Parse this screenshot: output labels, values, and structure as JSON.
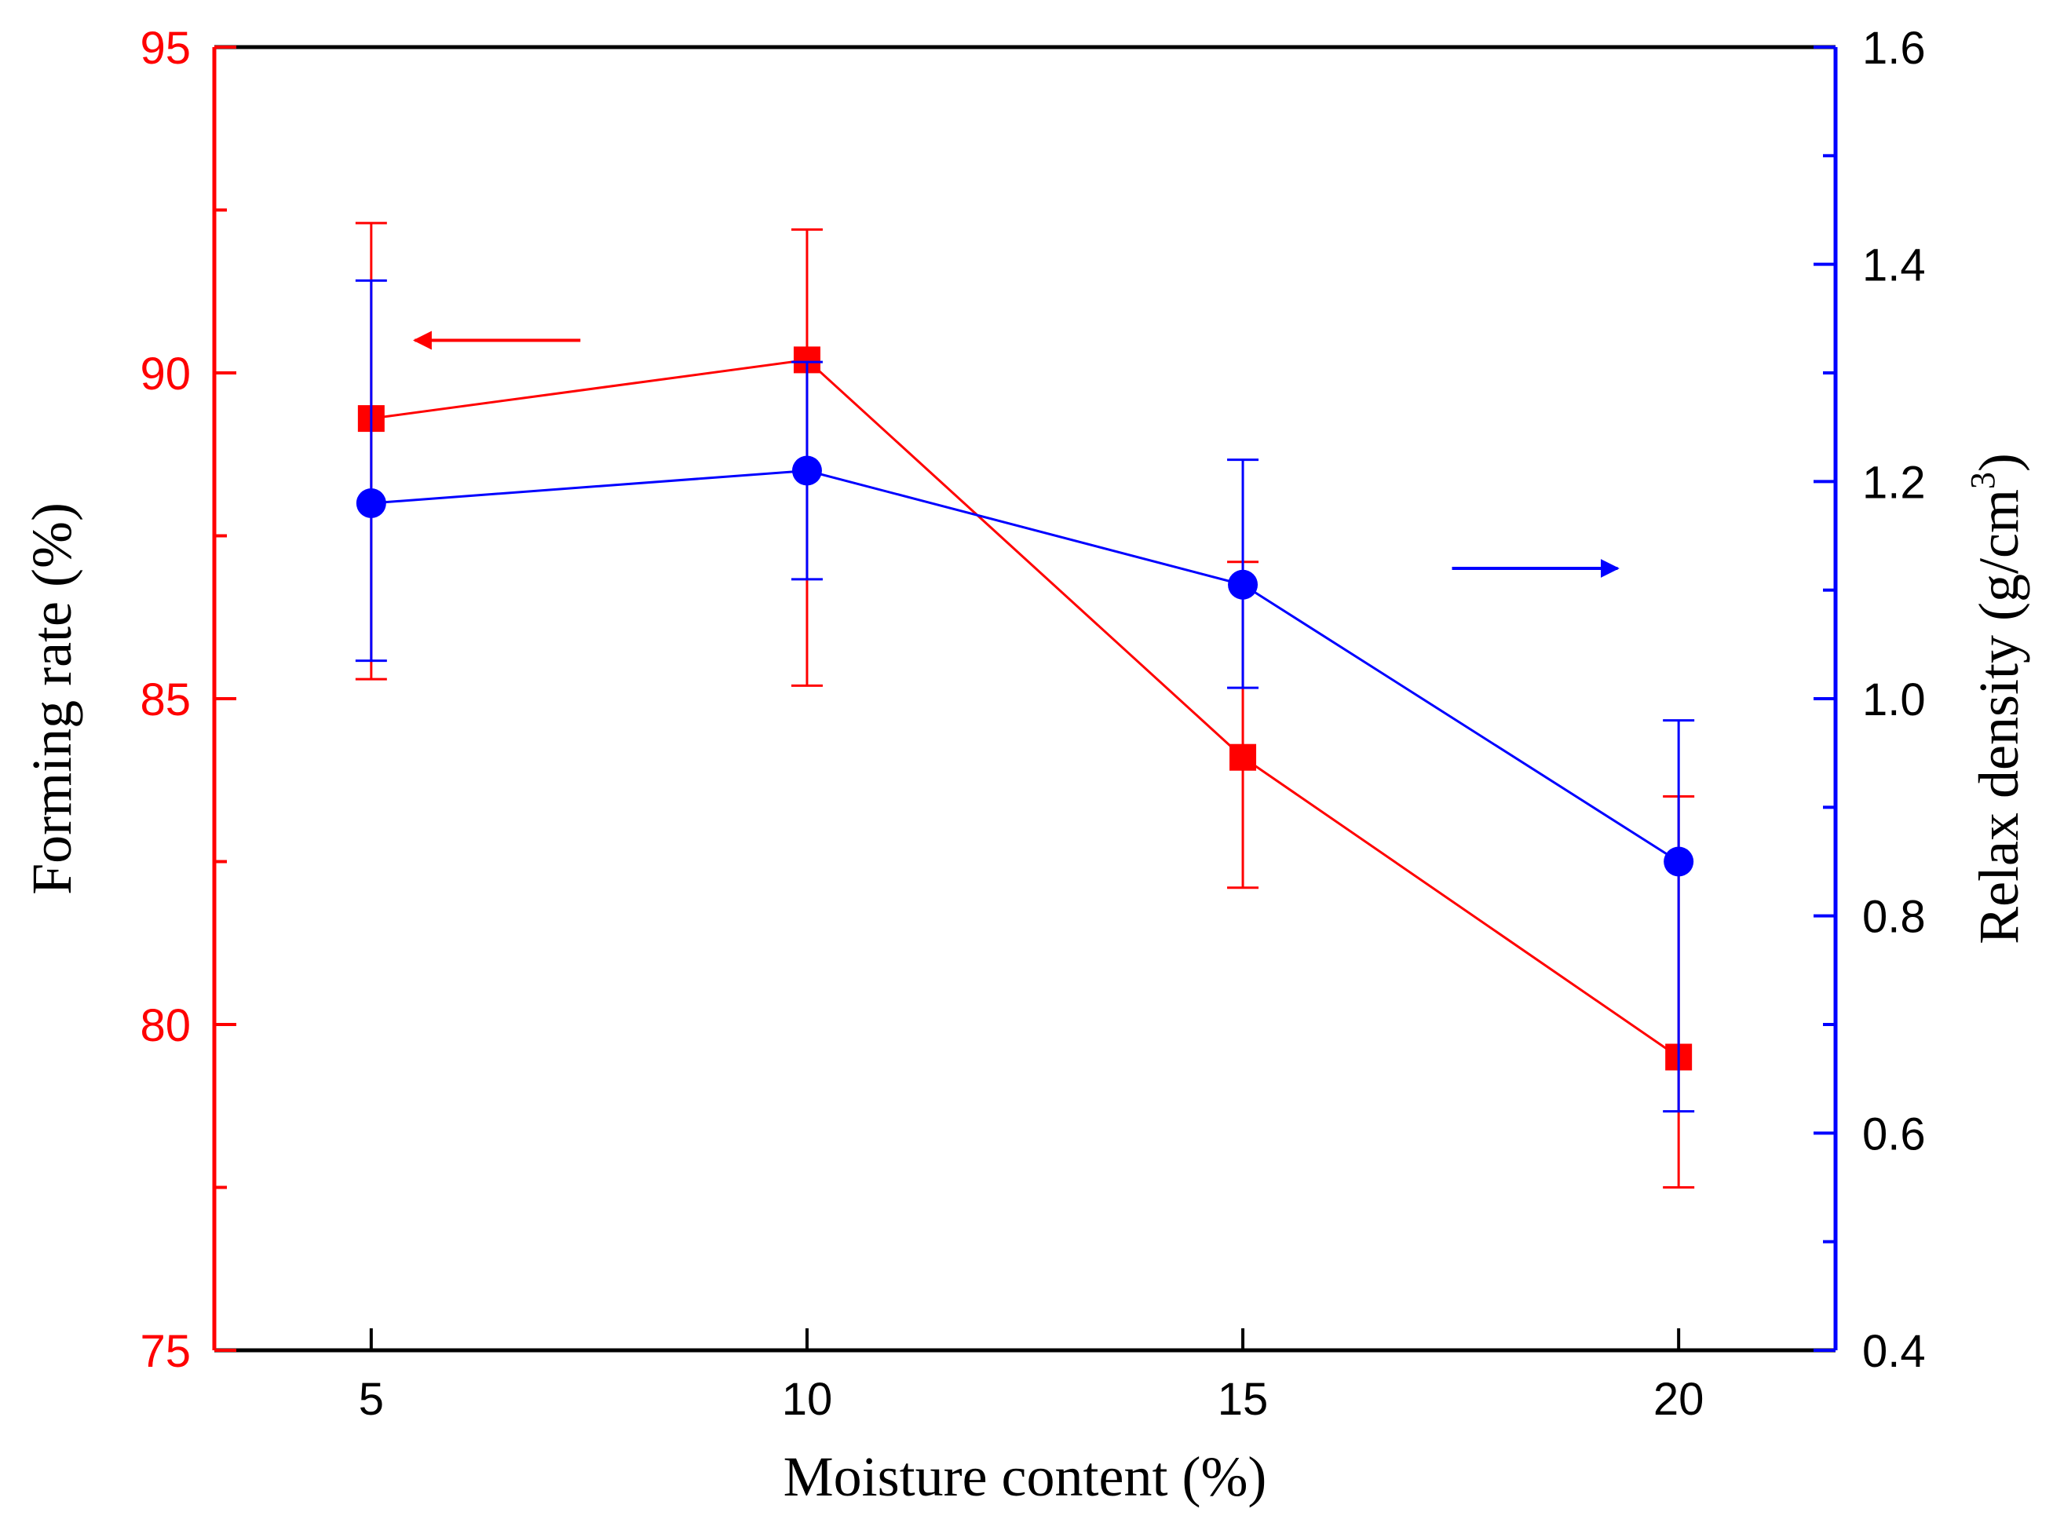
{
  "chart_data": {
    "type": "line",
    "title": "",
    "xlabel": "Moisture content (%)",
    "ylabel_left": "Forming rate (%)",
    "ylabel_right": {
      "prefix": "Relax density (g/cm",
      "superscript": "3",
      "suffix": ")"
    },
    "x": [
      5,
      10,
      15,
      20
    ],
    "xlim": [
      3.2,
      21.8
    ],
    "xticks": [
      5,
      10,
      15,
      20
    ],
    "ylim_left": [
      75,
      95
    ],
    "yticks_left": [
      75,
      80,
      85,
      90,
      95
    ],
    "ylim_right": [
      0.4,
      1.6
    ],
    "yticks_right": [
      "0.4",
      "0.6",
      "0.8",
      "1.0",
      "1.2",
      "1.4",
      "1.6"
    ],
    "series": [
      {
        "name": "Forming rate",
        "axis": "left",
        "color": "#ff0000",
        "marker": "square",
        "values": [
          89.3,
          90.2,
          84.1,
          79.5
        ],
        "err_high": [
          92.3,
          92.2,
          87.1,
          83.5
        ],
        "err_low": [
          85.3,
          85.2,
          82.1,
          77.5
        ]
      },
      {
        "name": "Relax density",
        "axis": "right",
        "color": "#0000ff",
        "marker": "circle",
        "values": [
          1.18,
          1.21,
          1.105,
          0.85
        ],
        "err_high": [
          1.385,
          1.31,
          1.22,
          0.98
        ],
        "err_low": [
          1.035,
          1.11,
          1.01,
          0.62
        ]
      }
    ],
    "annotations": [
      {
        "type": "arrow",
        "direction": "left",
        "color": "#ff0000",
        "axis": "left",
        "x_from": 7.4,
        "x_to": 5.5,
        "y": 90.5
      },
      {
        "type": "arrow",
        "direction": "right",
        "color": "#0000ff",
        "axis": "right",
        "x_from": 17.4,
        "x_to": 19.3,
        "y": 1.12
      }
    ],
    "grid": false,
    "legend": "none"
  }
}
